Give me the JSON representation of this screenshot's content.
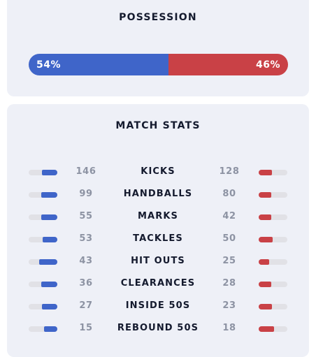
{
  "possession": {
    "title": "POSSESSION",
    "home_label": "54%",
    "away_label": "46%",
    "home_fraction": 0.54,
    "home_color": "#3f65c9",
    "away_color": "#c94146"
  },
  "match_stats": {
    "title": "MATCH STATS",
    "rows": [
      {
        "label": "KICKS",
        "home": "146",
        "away": "128"
      },
      {
        "label": "HANDBALLS",
        "home": "99",
        "away": "80"
      },
      {
        "label": "MARKS",
        "home": "55",
        "away": "42"
      },
      {
        "label": "TACKLES",
        "home": "53",
        "away": "50"
      },
      {
        "label": "HIT OUTS",
        "home": "43",
        "away": "25"
      },
      {
        "label": "CLEARANCES",
        "home": "36",
        "away": "28"
      },
      {
        "label": "INSIDE 50S",
        "home": "27",
        "away": "23"
      },
      {
        "label": "REBOUND 50S",
        "home": "15",
        "away": "18"
      }
    ]
  }
}
